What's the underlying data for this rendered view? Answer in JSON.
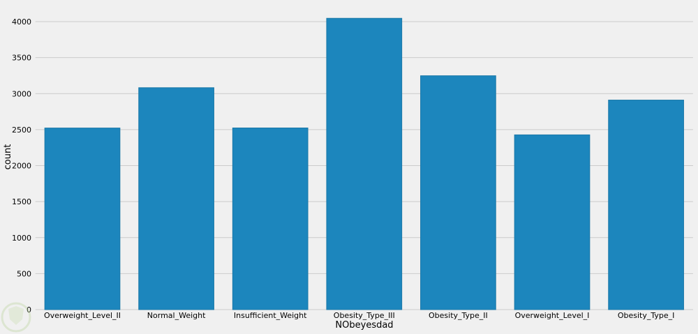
{
  "chart_data": {
    "type": "bar",
    "xlabel": "NObeyesdad",
    "ylabel": "count",
    "categories": [
      "Overweight_Level_II",
      "Normal_Weight",
      "Insufficient_Weight",
      "Obesity_Type_III",
      "Obesity_Type_II",
      "Overweight_Level_I",
      "Obesity_Type_I"
    ],
    "values": [
      2522,
      3082,
      2523,
      4046,
      3248,
      2427,
      2910
    ],
    "yticks": [
      0,
      500,
      1000,
      1500,
      2000,
      2500,
      3000,
      3500,
      4000
    ],
    "ylim": [
      0,
      4250
    ],
    "grid": true,
    "bar_color": "#1c86bd",
    "background_color": "#f0f0f0"
  }
}
